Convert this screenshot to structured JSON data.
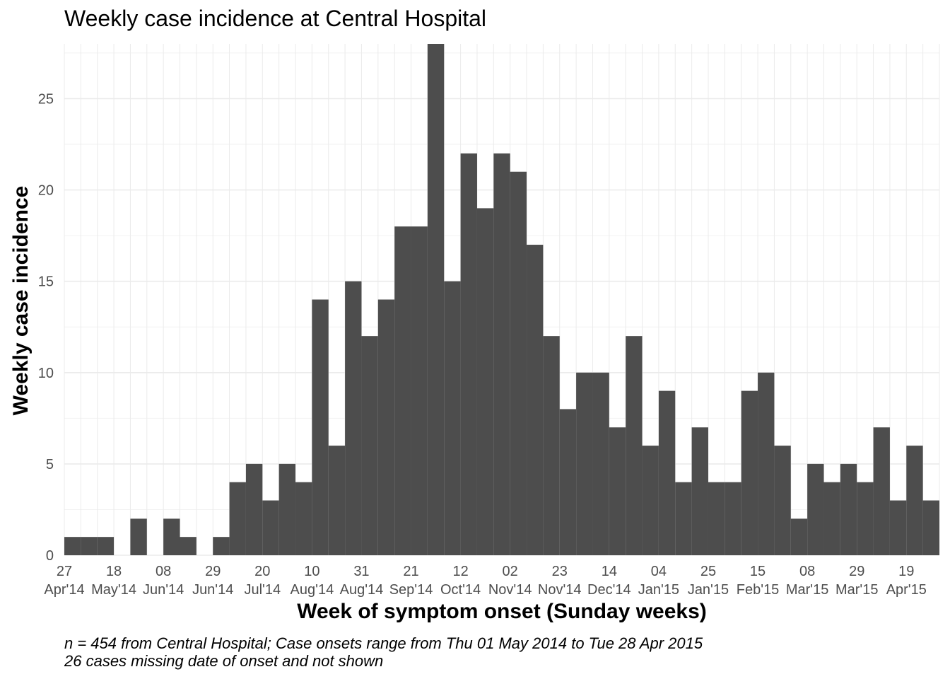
{
  "chart_data": {
    "type": "bar",
    "title": "Weekly case incidence at Central Hospital",
    "xlabel": "Week of symptom onset (Sunday weeks)",
    "ylabel": "Weekly case incidence",
    "ylim": [
      0,
      28
    ],
    "yticks": [
      0,
      5,
      10,
      15,
      20,
      25
    ],
    "grid": true,
    "bar_color": "#4d4d4d",
    "weeks": [
      "2014-04-27",
      "2014-05-04",
      "2014-05-11",
      "2014-05-18",
      "2014-05-25",
      "2014-06-01",
      "2014-06-08",
      "2014-06-15",
      "2014-06-22",
      "2014-06-29",
      "2014-07-06",
      "2014-07-13",
      "2014-07-20",
      "2014-07-27",
      "2014-08-03",
      "2014-08-10",
      "2014-08-17",
      "2014-08-24",
      "2014-08-31",
      "2014-09-07",
      "2014-09-14",
      "2014-09-21",
      "2014-09-28",
      "2014-10-05",
      "2014-10-12",
      "2014-10-19",
      "2014-10-26",
      "2014-11-02",
      "2014-11-09",
      "2014-11-16",
      "2014-11-23",
      "2014-11-30",
      "2014-12-07",
      "2014-12-14",
      "2014-12-21",
      "2014-12-28",
      "2015-01-04",
      "2015-01-11",
      "2015-01-18",
      "2015-01-25",
      "2015-02-01",
      "2015-02-08",
      "2015-02-15",
      "2015-02-22",
      "2015-03-01",
      "2015-03-08",
      "2015-03-15",
      "2015-03-22",
      "2015-03-29",
      "2015-04-05",
      "2015-04-12",
      "2015-04-19",
      "2015-04-26"
    ],
    "values": [
      1,
      1,
      1,
      0,
      2,
      0,
      2,
      1,
      0,
      1,
      4,
      5,
      3,
      5,
      4,
      14,
      6,
      15,
      12,
      14,
      18,
      18,
      28,
      15,
      22,
      19,
      22,
      21,
      17,
      12,
      8,
      10,
      10,
      7,
      12,
      6,
      9,
      4,
      7,
      4,
      4,
      9,
      10,
      6,
      2,
      5,
      4,
      5,
      4,
      7,
      3,
      6,
      3
    ],
    "x_tick_labels": [
      {
        "day": "27",
        "month": "Apr'14"
      },
      {
        "day": "18",
        "month": "May'14"
      },
      {
        "day": "08",
        "month": "Jun'14"
      },
      {
        "day": "29",
        "month": "Jun'14"
      },
      {
        "day": "20",
        "month": "Jul'14"
      },
      {
        "day": "10",
        "month": "Aug'14"
      },
      {
        "day": "31",
        "month": "Aug'14"
      },
      {
        "day": "21",
        "month": "Sep'14"
      },
      {
        "day": "12",
        "month": "Oct'14"
      },
      {
        "day": "02",
        "month": "Nov'14"
      },
      {
        "day": "23",
        "month": "Nov'14"
      },
      {
        "day": "14",
        "month": "Dec'14"
      },
      {
        "day": "04",
        "month": "Jan'15"
      },
      {
        "day": "25",
        "month": "Jan'15"
      },
      {
        "day": "15",
        "month": "Feb'15"
      },
      {
        "day": "08",
        "month": "Mar'15"
      },
      {
        "day": "29",
        "month": "Mar'15"
      },
      {
        "day": "19",
        "month": "Apr'15"
      }
    ]
  },
  "captions": {
    "line1": "n = 454 from Central Hospital; Case onsets range from Thu 01 May 2014 to Tue 28 Apr 2015",
    "line2": "26 cases missing date of onset and not shown"
  }
}
